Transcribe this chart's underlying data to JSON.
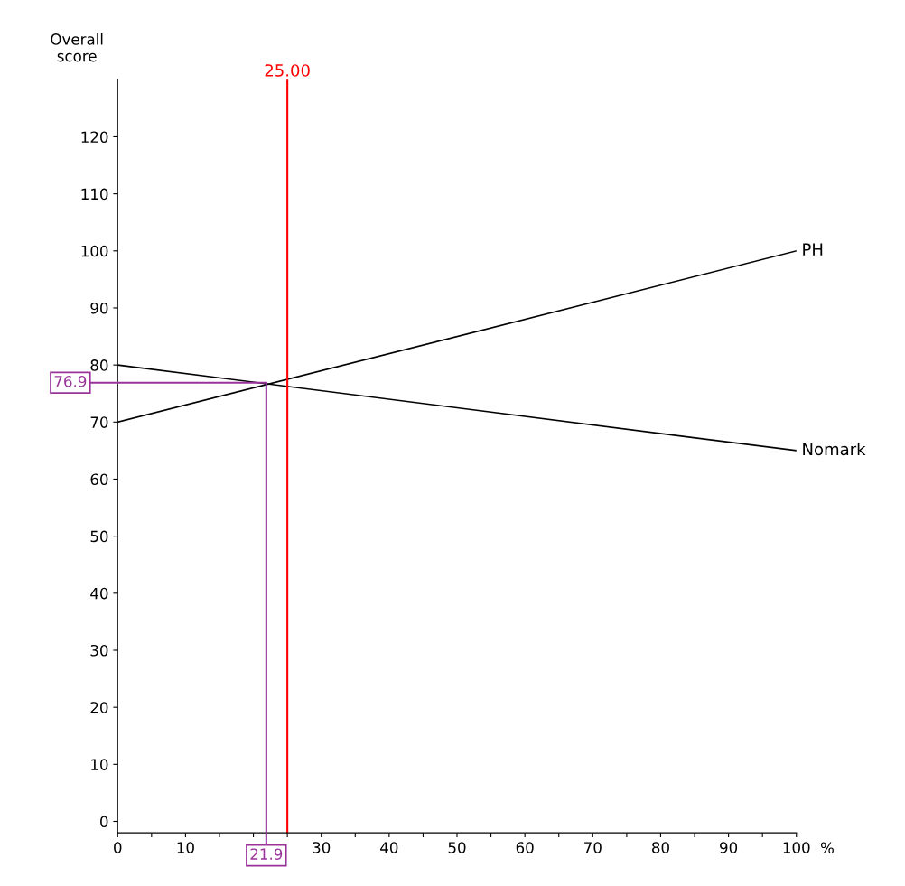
{
  "chart_data": {
    "type": "line",
    "ylabel": "Overall score",
    "xlabel": "%",
    "x": [
      0,
      100
    ],
    "series": [
      {
        "name": "PH",
        "color": "#000000",
        "values": [
          70,
          100
        ]
      },
      {
        "name": "Nomark",
        "color": "#000000",
        "values": [
          80,
          65
        ]
      }
    ],
    "xlim": [
      0,
      100
    ],
    "ylim": [
      -2,
      130
    ],
    "xticks": [
      0,
      {
        "value": 5,
        "label": null
      },
      10,
      {
        "value": 15,
        "label": null
      },
      {
        "value": 20,
        "label": null
      },
      {
        "value": 25,
        "label": null
      },
      30,
      {
        "value": 35,
        "label": null
      },
      40,
      {
        "value": 45,
        "label": null
      },
      50,
      {
        "value": 55,
        "label": null
      },
      60,
      {
        "value": 65,
        "label": null
      },
      70,
      {
        "value": 75,
        "label": null
      },
      80,
      {
        "value": 85,
        "label": null
      },
      90,
      {
        "value": 95,
        "label": null
      },
      100
    ],
    "yticks": [
      0,
      10,
      20,
      30,
      40,
      50,
      60,
      70,
      80,
      90,
      100,
      110,
      120
    ],
    "ref_lines": [
      {
        "axis": "x",
        "value": 25,
        "label": "25.00",
        "color": "#ff0000"
      }
    ],
    "annotations": [
      {
        "text": "76.9",
        "x": 21.9,
        "y": 76.9
      },
      {
        "text": "21.9",
        "x": 21.9,
        "y": 76.9
      }
    ],
    "grid": false,
    "legend": false,
    "marker": "none",
    "line_style": "solid"
  }
}
